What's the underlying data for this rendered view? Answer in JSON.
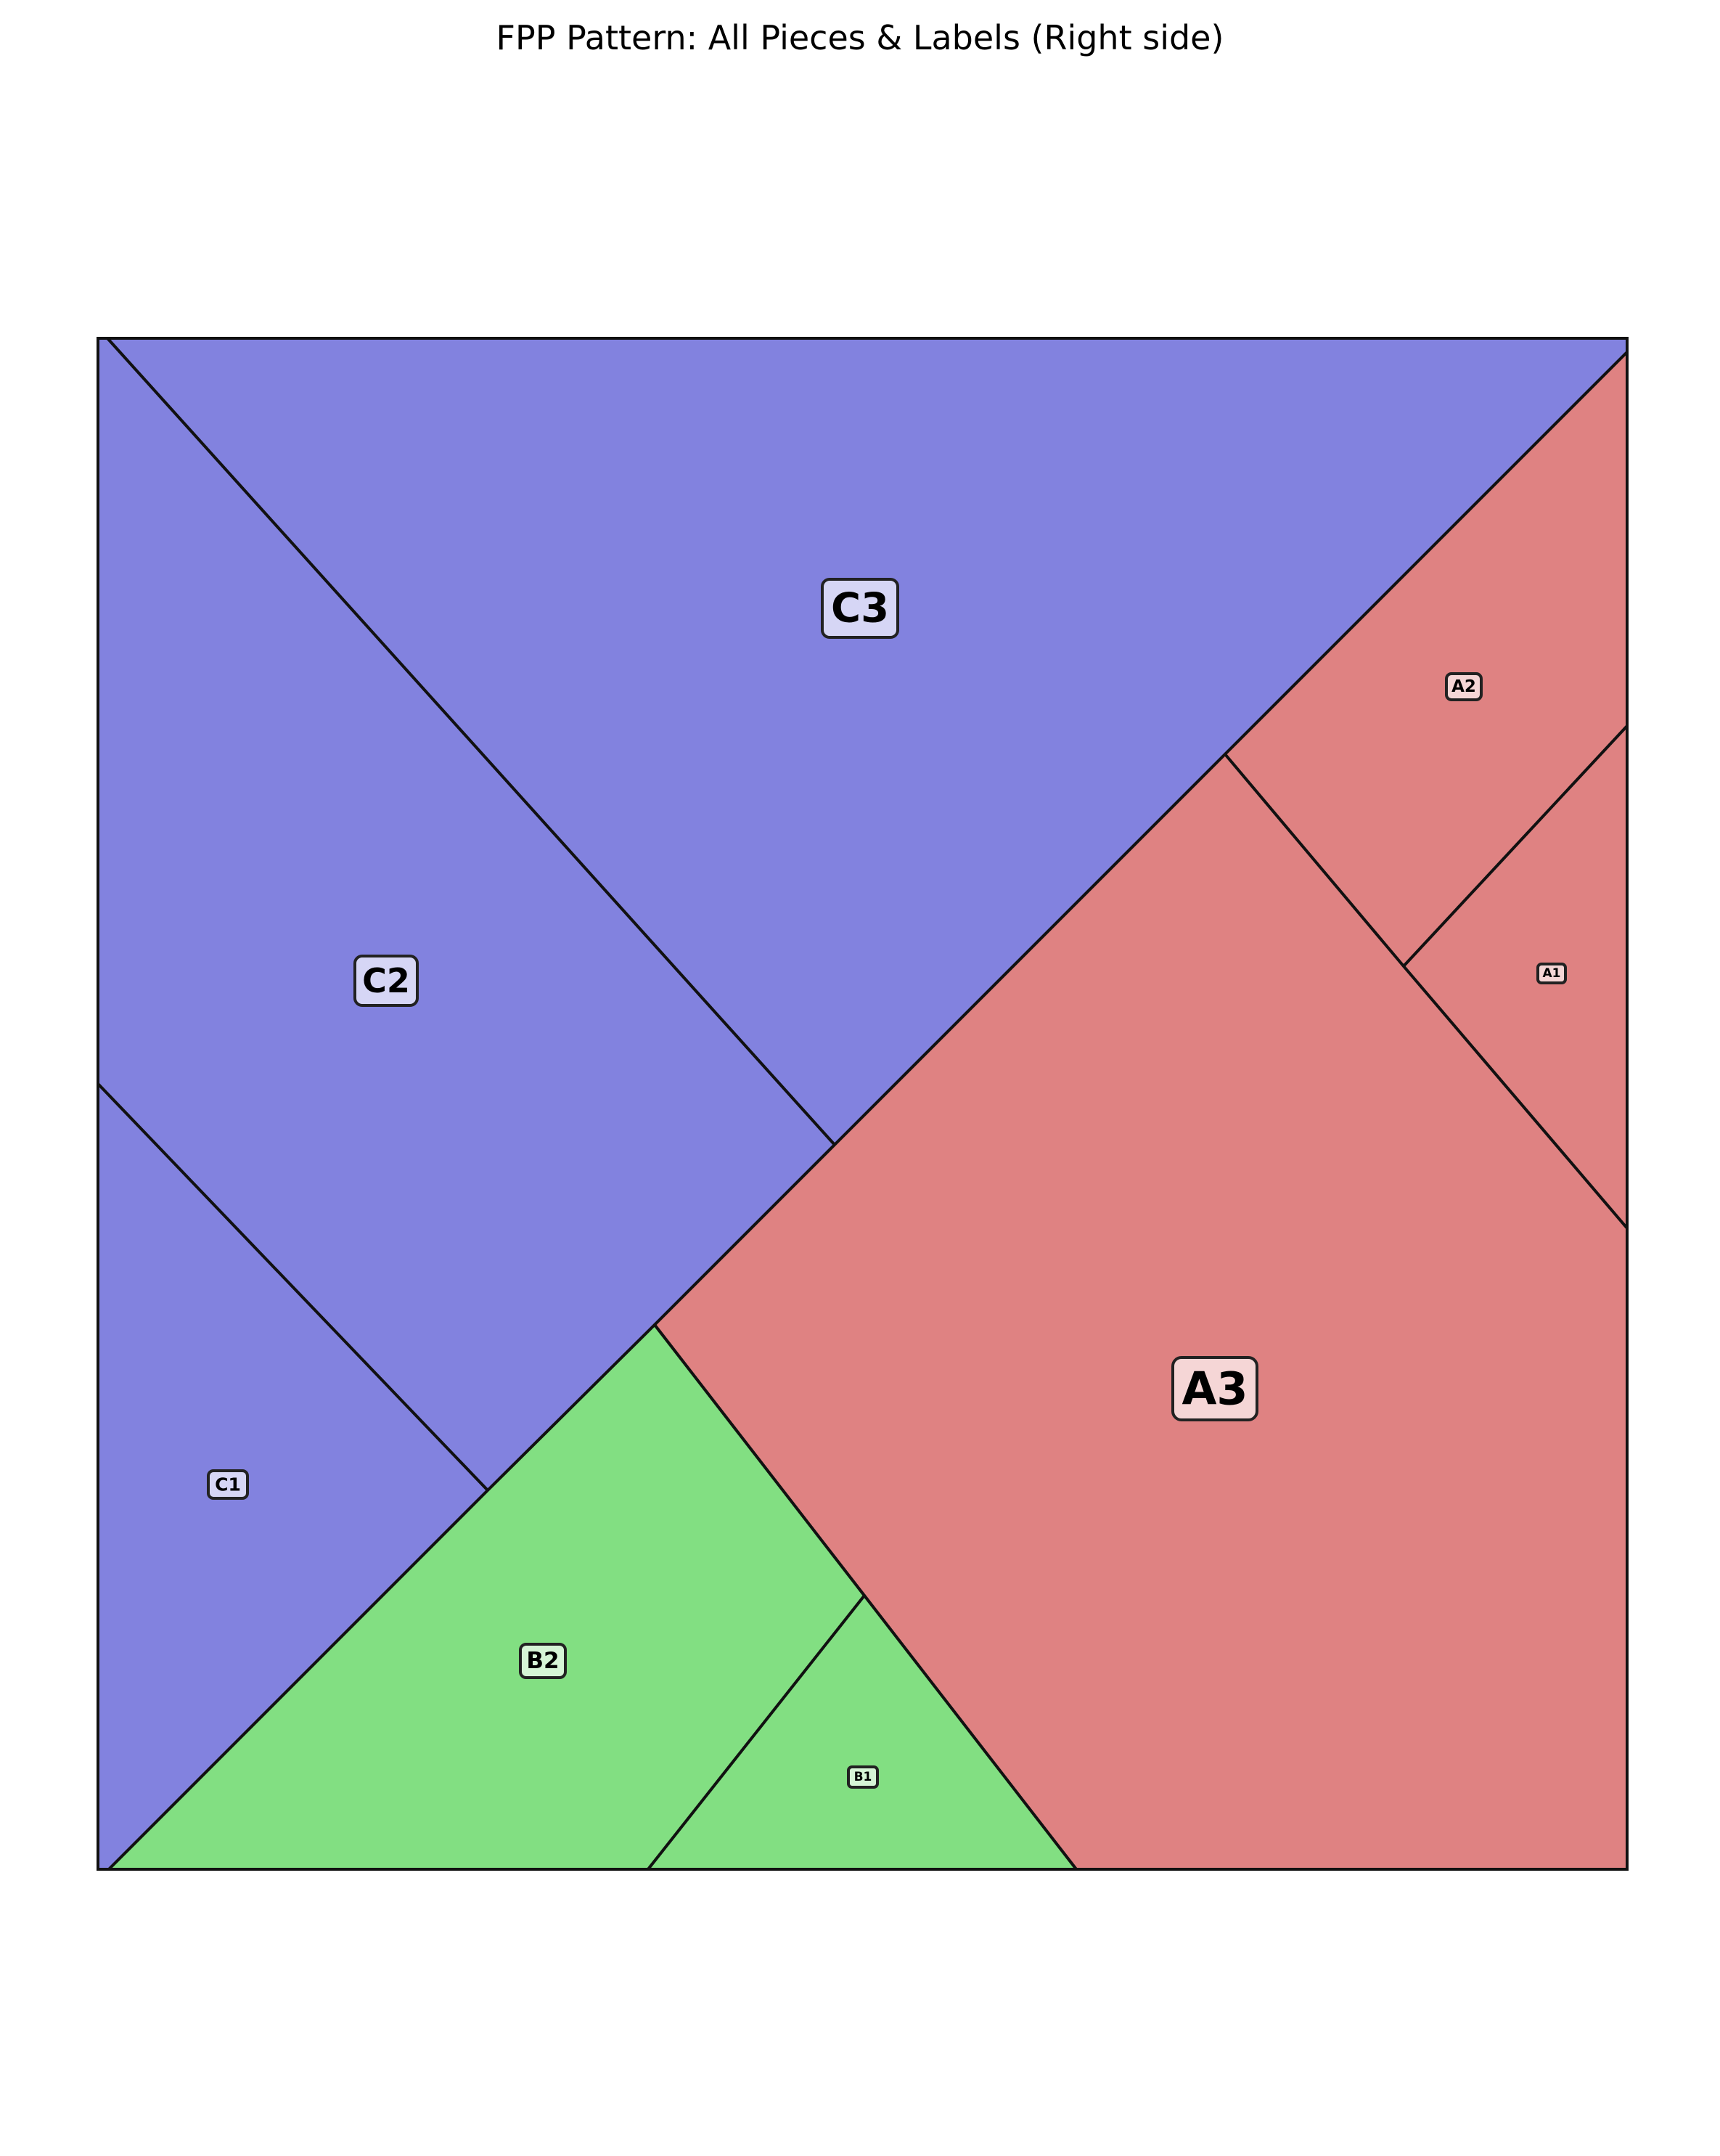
{
  "title": "FPP Pattern: All Pieces & Labels (Right side)",
  "colors": {
    "A": "#df8282",
    "B": "#82df82",
    "C": "#8282df",
    "label_A": "#f5d6d6",
    "label_B": "#d6f5d6",
    "label_C": "#d6d6f5"
  },
  "pieces": [
    {
      "id": "C3",
      "label": "C3",
      "group": "C"
    },
    {
      "id": "C2",
      "label": "C2",
      "group": "C"
    },
    {
      "id": "C1",
      "label": "C1",
      "group": "C"
    },
    {
      "id": "A2",
      "label": "A2",
      "group": "A"
    },
    {
      "id": "A1",
      "label": "A1",
      "group": "A"
    },
    {
      "id": "A3",
      "label": "A3",
      "group": "A"
    },
    {
      "id": "B2",
      "label": "B2",
      "group": "B"
    },
    {
      "id": "B1",
      "label": "B1",
      "group": "B"
    }
  ]
}
